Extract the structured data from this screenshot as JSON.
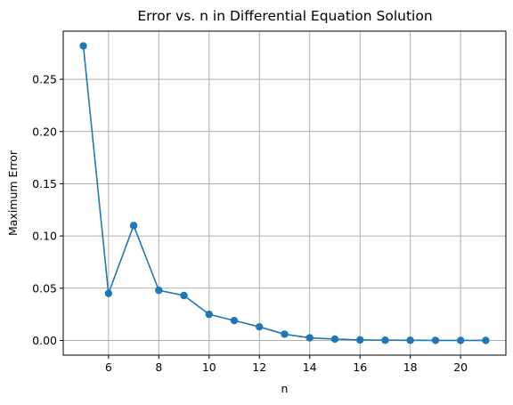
{
  "chart_data": {
    "type": "line",
    "title": "Error vs. n in Differential Equation Solution",
    "xlabel": "n",
    "ylabel": "Maximum Error",
    "x": [
      5,
      6,
      7,
      8,
      9,
      10,
      11,
      12,
      13,
      14,
      15,
      16,
      17,
      18,
      19,
      20,
      21
    ],
    "series": [
      {
        "values": [
          0.282,
          0.045,
          0.11,
          0.048,
          0.043,
          0.025,
          0.019,
          0.013,
          0.006,
          0.0025,
          0.0013,
          0.0005,
          0.0002,
          0.0001,
          5e-05,
          2e-05,
          1e-05
        ]
      }
    ],
    "xlim": [
      4.2,
      21.8
    ],
    "ylim": [
      -0.0141,
      0.2961
    ],
    "xticks": [
      6,
      8,
      10,
      12,
      14,
      16,
      18,
      20
    ],
    "xtick_labels": [
      "6",
      "8",
      "10",
      "12",
      "14",
      "16",
      "18",
      "20"
    ],
    "yticks": [
      0.0,
      0.05,
      0.1,
      0.15,
      0.2,
      0.25
    ],
    "ytick_labels": [
      "0.00",
      "0.05",
      "0.10",
      "0.15",
      "0.20",
      "0.25"
    ],
    "grid": true,
    "marker": "circle",
    "line_color": "#1f77b4"
  }
}
